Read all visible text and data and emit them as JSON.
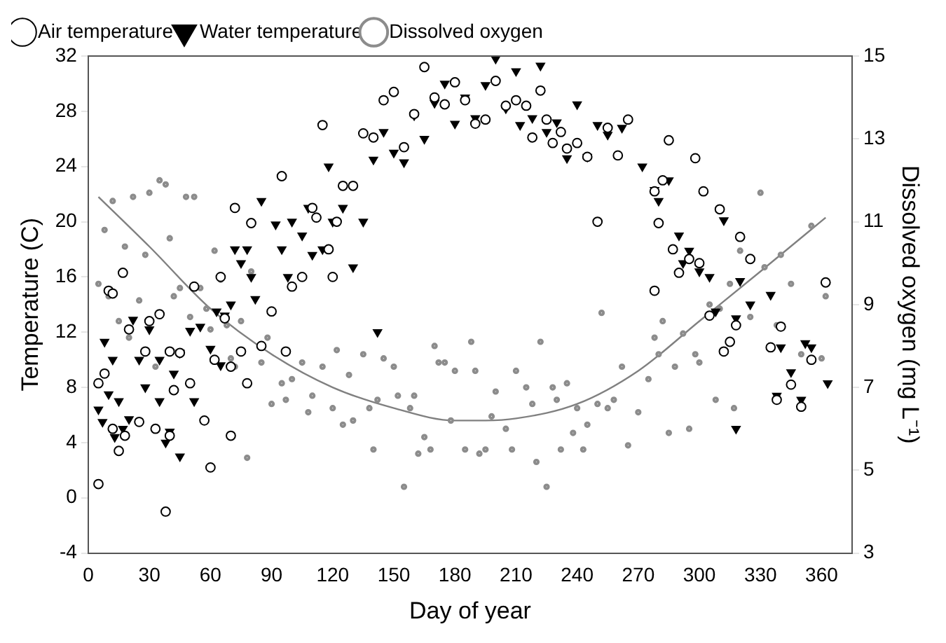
{
  "chart_data": {
    "type": "scatter",
    "xlabel": "Day of year",
    "ylabel": "Temperature (C)",
    "y2label": "Dissolved oxygen (mg L⁻¹)",
    "xlim": [
      0,
      375
    ],
    "xticks": [
      0,
      30,
      60,
      90,
      120,
      150,
      180,
      210,
      240,
      270,
      300,
      330,
      360
    ],
    "ylim": [
      -4,
      32
    ],
    "yticks": [
      -4,
      0,
      4,
      8,
      12,
      16,
      20,
      24,
      28,
      32
    ],
    "y2lim": [
      3,
      15
    ],
    "y2ticks": [
      3,
      5,
      7,
      9,
      11,
      13,
      15
    ],
    "grid": false,
    "legend": "top left",
    "series": [
      {
        "name": "Air temperature",
        "color": "#000000",
        "marker": "circle",
        "x": [
          5,
          5,
          8,
          10,
          12,
          12,
          15,
          17,
          18,
          20,
          25,
          28,
          30,
          33,
          35,
          38,
          40,
          40,
          42,
          45,
          50,
          52,
          57,
          60,
          62,
          65,
          67,
          70,
          70,
          72,
          75,
          78,
          80,
          85,
          90,
          95,
          97,
          100,
          105,
          110,
          112,
          115,
          118,
          120,
          122,
          125,
          130,
          135,
          140,
          145,
          150,
          155,
          160,
          165,
          170,
          175,
          180,
          185,
          190,
          195,
          200,
          205,
          210,
          215,
          218,
          222,
          225,
          228,
          232,
          235,
          240,
          245,
          250,
          255,
          260,
          265,
          278,
          278,
          280,
          282,
          285,
          287,
          290,
          295,
          298,
          300,
          302,
          305,
          310,
          312,
          315,
          318,
          320,
          325,
          335,
          338,
          340,
          345,
          350,
          355,
          362
        ],
        "values": [
          1,
          8.3,
          9,
          15,
          14.8,
          5,
          3.4,
          16.3,
          4.5,
          12.2,
          5.5,
          10.6,
          12.8,
          5,
          13.3,
          -1,
          10.6,
          4.5,
          7.8,
          10.5,
          8.3,
          15.3,
          5.6,
          2.2,
          10,
          16,
          13,
          9.5,
          4.5,
          21,
          10.6,
          8.3,
          19.9,
          11,
          13.5,
          23.3,
          10.6,
          15.3,
          16,
          21,
          20.3,
          27,
          18,
          16,
          20,
          22.6,
          22.6,
          26.4,
          26.1,
          28.8,
          29.4,
          25.4,
          27.8,
          31.2,
          29,
          28.5,
          30.1,
          28.8,
          27.1,
          27.4,
          30.2,
          28.4,
          28.8,
          28.4,
          26.1,
          29.5,
          27.4,
          25.7,
          26.5,
          25.3,
          25.7,
          24.7,
          20,
          26.8,
          24.8,
          27.4,
          22.2,
          15,
          19.9,
          23,
          25.9,
          18,
          16.3,
          17.3,
          24.6,
          17,
          22.2,
          13.2,
          20.9,
          10.6,
          11.3,
          12.5,
          18.9,
          17.3,
          10.9,
          7.1,
          12.4,
          8.2,
          6.6,
          10,
          15.6
        ]
      },
      {
        "name": "Water temperature",
        "color": "#000000",
        "marker": "triangle",
        "x": [
          5,
          7,
          8,
          10,
          12,
          13,
          15,
          17,
          20,
          22,
          25,
          28,
          30,
          35,
          35,
          38,
          40,
          42,
          45,
          45,
          50,
          52,
          55,
          60,
          63,
          65,
          67,
          70,
          72,
          75,
          78,
          80,
          82,
          85,
          92,
          95,
          98,
          100,
          105,
          108,
          110,
          115,
          118,
          120,
          125,
          130,
          135,
          140,
          142,
          145,
          150,
          155,
          160,
          165,
          170,
          175,
          180,
          185,
          190,
          195,
          200,
          205,
          210,
          212,
          218,
          222,
          225,
          230,
          235,
          240,
          245,
          250,
          255,
          262,
          272,
          278,
          280,
          285,
          290,
          292,
          295,
          300,
          305,
          308,
          312,
          318,
          318,
          320,
          325,
          335,
          338,
          340,
          345,
          350,
          352,
          355,
          363
        ],
        "values": [
          6.4,
          5.5,
          11.3,
          7.5,
          10,
          4.4,
          7,
          5,
          5.7,
          12.9,
          10,
          8,
          12.2,
          10,
          7,
          4,
          4.8,
          9,
          3,
          10.5,
          12.1,
          7,
          12.4,
          10.8,
          13.5,
          9.6,
          13.2,
          14,
          18,
          17,
          18,
          16,
          14.4,
          21.5,
          19.8,
          18,
          16,
          20,
          19,
          21,
          17.6,
          18,
          24,
          20,
          21,
          16.7,
          20,
          24.5,
          12,
          26.5,
          25,
          24.3,
          27.7,
          26,
          28.6,
          30,
          27.1,
          29,
          27.5,
          29.9,
          31.8,
          28.2,
          30.9,
          27,
          27.5,
          31.3,
          26.5,
          27.2,
          24.6,
          28.5,
          24.7,
          27,
          26.3,
          26.8,
          24,
          22.3,
          21.5,
          23,
          19,
          17,
          17.9,
          16.4,
          16,
          13.5,
          20.1,
          13,
          5,
          15.7,
          14,
          14.7,
          7.4,
          10.9,
          9.1,
          7.1,
          11.2,
          10.9,
          8.3
        ]
      },
      {
        "name": "Dissolved oxygen",
        "color": "#8c8c8c",
        "marker": "circle",
        "axis": "y2",
        "x": [
          5,
          8,
          10,
          12,
          15,
          18,
          20,
          22,
          25,
          28,
          30,
          33,
          35,
          38,
          40,
          42,
          45,
          48,
          50,
          52,
          55,
          58,
          60,
          62,
          65,
          68,
          70,
          72,
          75,
          78,
          80,
          85,
          88,
          90,
          95,
          97,
          100,
          105,
          108,
          110,
          115,
          120,
          122,
          125,
          128,
          130,
          135,
          138,
          140,
          142,
          145,
          150,
          152,
          155,
          158,
          160,
          162,
          165,
          168,
          170,
          172,
          175,
          178,
          180,
          185,
          188,
          190,
          192,
          195,
          198,
          200,
          205,
          208,
          210,
          215,
          218,
          220,
          222,
          225,
          228,
          230,
          232,
          235,
          238,
          240,
          243,
          245,
          250,
          252,
          255,
          258,
          262,
          265,
          270,
          275,
          278,
          280,
          282,
          285,
          288,
          292,
          295,
          298,
          300,
          305,
          308,
          310,
          315,
          317,
          320,
          325,
          330,
          332,
          338,
          340,
          345,
          350,
          355,
          360,
          362
        ],
        "values": [
          9.5,
          10.8,
          9.2,
          11.5,
          8.6,
          10.4,
          8.2,
          11.6,
          9.1,
          10.2,
          11.7,
          7.5,
          12,
          11.9,
          10.6,
          9.2,
          9.4,
          11.6,
          8.7,
          11.6,
          9.4,
          8.9,
          8.4,
          10.3,
          9.6,
          8.5,
          7.7,
          7.5,
          8.6,
          5.3,
          9.8,
          7.6,
          8.2,
          6.6,
          7.1,
          6.7,
          7.2,
          7.6,
          6.4,
          6.8,
          7.5,
          6.5,
          7.9,
          6.1,
          7.3,
          6.2,
          7.8,
          6.5,
          5.5,
          6.7,
          7.7,
          7.5,
          6.8,
          4.6,
          6.5,
          6.8,
          5.4,
          5.8,
          5.5,
          8,
          7.6,
          7.6,
          6.2,
          7.4,
          5.5,
          8.1,
          7.4,
          5.4,
          5.5,
          6.3,
          6.9,
          6,
          5.5,
          7.4,
          7,
          6.6,
          5.2,
          8.1,
          4.6,
          7,
          6.7,
          5.5,
          7.1,
          5.9,
          6.5,
          5.5,
          6.1,
          6.6,
          8.8,
          6.5,
          6.7,
          7.5,
          5.6,
          6.4,
          7.2,
          8.2,
          7.8,
          8.6,
          5.9,
          7.5,
          8.3,
          6,
          7.8,
          7.6,
          9,
          6.7,
          8.9,
          9.5,
          6.5,
          10.3,
          8.7,
          11.7,
          9.9,
          8.5,
          10.2,
          9.5,
          7.8,
          10.9,
          7.7,
          9.2
        ]
      },
      {
        "type": "line",
        "color": "#808080",
        "marker": "none",
        "axis": "y2",
        "x": [
          5,
          30,
          60,
          90,
          120,
          150,
          180,
          195,
          210,
          240,
          270,
          300,
          330,
          362
        ],
        "values": [
          11.6,
          10.4,
          8.9,
          7.8,
          7.0,
          6.5,
          6.2,
          6.2,
          6.25,
          6.6,
          7.4,
          8.6,
          9.8,
          11.1
        ]
      }
    ]
  }
}
